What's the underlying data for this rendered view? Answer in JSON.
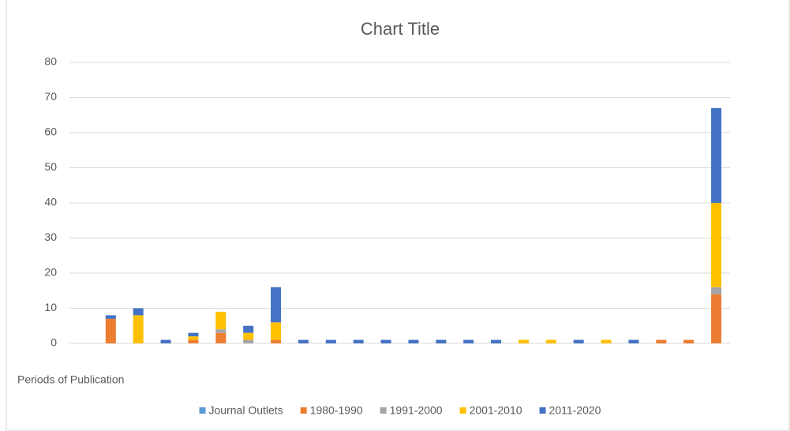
{
  "chart_data": {
    "type": "bar",
    "stacked": true,
    "title": "Chart Title",
    "x_label": "Periods of Publication",
    "categories": [
      null,
      null,
      null,
      null,
      null,
      null,
      null,
      null,
      null,
      null,
      null,
      null,
      null,
      null,
      null,
      null,
      null,
      null,
      null,
      null,
      null,
      null,
      null,
      null
    ],
    "series": [
      {
        "name": "Journal Outlets",
        "color": "#5b9bd5",
        "values": [
          null,
          null,
          null,
          null,
          null,
          null,
          null,
          null,
          null,
          null,
          null,
          null,
          null,
          null,
          null,
          null,
          null,
          null,
          null,
          null,
          null,
          null,
          null,
          null
        ]
      },
      {
        "name": "1980-1990",
        "color": "#ed7d31",
        "values": [
          null,
          7,
          null,
          null,
          1,
          3,
          null,
          1,
          null,
          null,
          null,
          null,
          null,
          null,
          null,
          null,
          null,
          null,
          null,
          null,
          null,
          1,
          1,
          14
        ]
      },
      {
        "name": "1991-2000",
        "color": "#a5a5a5",
        "values": [
          null,
          null,
          null,
          null,
          null,
          1,
          1,
          null,
          null,
          null,
          null,
          null,
          null,
          null,
          null,
          null,
          null,
          null,
          null,
          null,
          null,
          null,
          null,
          2
        ]
      },
      {
        "name": "2001-2010",
        "color": "#ffc000",
        "values": [
          null,
          null,
          8,
          null,
          1,
          5,
          2,
          5,
          null,
          null,
          null,
          null,
          null,
          null,
          null,
          null,
          1,
          1,
          null,
          1,
          null,
          null,
          null,
          24
        ]
      },
      {
        "name": "2011-2020",
        "color": "#4472c4",
        "values": [
          null,
          1,
          2,
          1,
          1,
          null,
          2,
          10,
          1,
          1,
          1,
          1,
          1,
          1,
          1,
          1,
          null,
          null,
          1,
          null,
          1,
          null,
          null,
          27
        ]
      }
    ],
    "ylim": [
      0,
      80
    ],
    "yticks": [
      0,
      10,
      20,
      30,
      40,
      50,
      60,
      70,
      80
    ],
    "grid": true,
    "legend": "bottom"
  }
}
